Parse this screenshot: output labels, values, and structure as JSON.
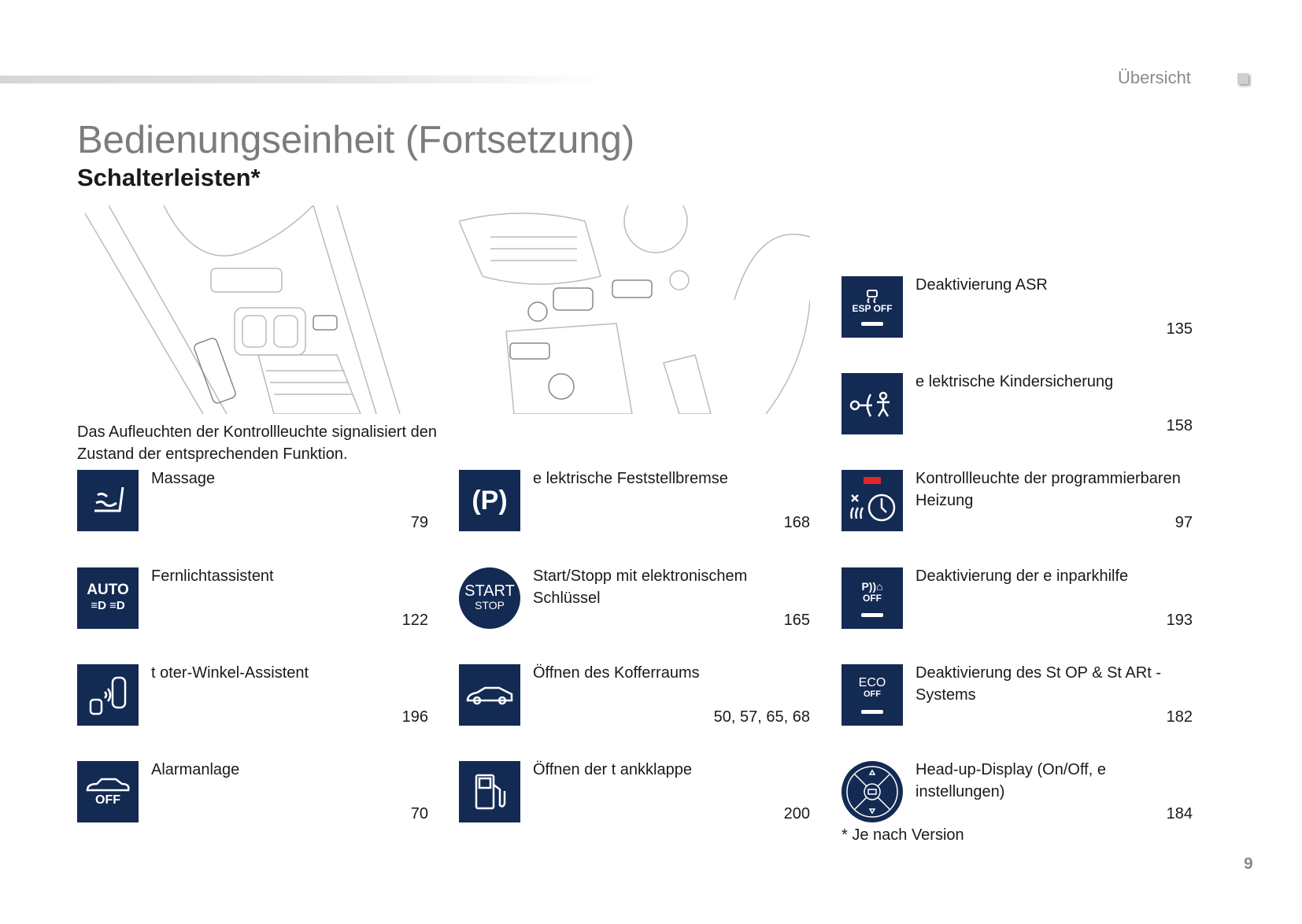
{
  "header": {
    "section": "Übersicht",
    "page_number": "9"
  },
  "title": "Bedienungseinheit (Fortsetzung)",
  "subtitle": "Schalterleisten*",
  "intro": "Das Aufleuchten der Kontrollleuchte signalisiert den Zustand der entsprechenden Funktion.",
  "items": [
    {
      "label": "Massage",
      "page": "79",
      "icon": "seat-massage-icon"
    },
    {
      "label": "Fernlichtassistent",
      "page": "122",
      "icon": "auto-headlight-icon",
      "icon_text": [
        "AUTO",
        "≡D ≡D"
      ]
    },
    {
      "label": "t oter-Winkel-Assistent",
      "page": "196",
      "icon": "blind-spot-icon"
    },
    {
      "label": "Alarmanlage",
      "page": "70",
      "icon": "alarm-off-icon",
      "icon_text": [
        "OFF"
      ]
    },
    {
      "label": "e lektrische Feststellbremse",
      "page": "168",
      "icon": "parking-brake-icon",
      "icon_text": [
        "(P)"
      ]
    },
    {
      "label": "Start/Stopp mit elektronischem Schlüssel",
      "page": "165",
      "icon": "start-stop-icon",
      "icon_text": [
        "START",
        "STOP"
      ]
    },
    {
      "label": "Öffnen des Kofferraums",
      "page": "50, 57, 65, 68",
      "icon": "car-trunk-icon"
    },
    {
      "label": "Öffnen der t ankklappe",
      "page": "200",
      "icon": "fuel-flap-icon"
    },
    {
      "label": "Deaktivierung ASR",
      "page": "135",
      "icon": "esp-off-icon",
      "icon_text": [
        "ESP OFF"
      ]
    },
    {
      "label": "e lektrische Kindersicherung",
      "page": "158",
      "icon": "child-lock-icon"
    },
    {
      "label": "Kontrollleuchte der programmierbaren Heizung",
      "page": "97",
      "icon": "programmable-heating-icon"
    },
    {
      "label": "Deaktivierung der e inparkhilfe",
      "page": "193",
      "icon": "park-assist-off-icon",
      "icon_text": [
        "OFF"
      ]
    },
    {
      "label": "Deaktivierung des St OP & St ARt -Systems",
      "page": "182",
      "icon": "eco-off-icon",
      "icon_text": [
        "ECO",
        "OFF"
      ]
    },
    {
      "label": "Head-up-Display (On/Off, e instellungen)",
      "page": "184",
      "icon": "head-up-display-icon"
    }
  ],
  "footnote": "* Je nach Version",
  "colors": {
    "icon_bg": "#132a53",
    "indicator_red": "#e0262b",
    "title_gray": "#7c7c7c"
  }
}
